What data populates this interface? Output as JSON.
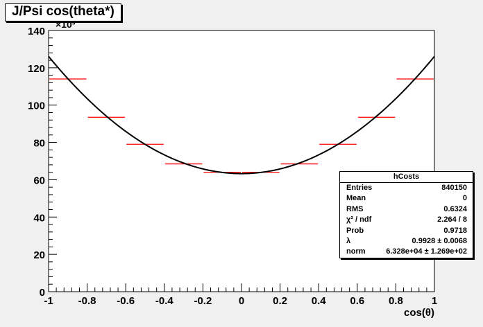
{
  "chart_data": {
    "type": "bar",
    "title": "J/Psi cos(theta*)",
    "xlabel": "cos(θ)",
    "ylabel": "",
    "y_exponent_label": "×10³",
    "xlim": [
      -1,
      1
    ],
    "ylim": [
      0,
      140
    ],
    "x_ticks": [
      "-1",
      "-0.8",
      "-0.6",
      "-0.4",
      "-0.2",
      "0",
      "0.2",
      "0.4",
      "0.6",
      "0.8",
      "1"
    ],
    "y_ticks": [
      "0",
      "20",
      "40",
      "60",
      "80",
      "100",
      "120",
      "140"
    ],
    "bin_edges": [
      -1.0,
      -0.8,
      -0.6,
      -0.4,
      -0.2,
      0.0,
      0.2,
      0.4,
      0.6,
      0.8,
      1.0
    ],
    "series": [
      {
        "values": [
          114.0,
          93.5,
          79.0,
          68.5,
          64.0,
          64.0,
          68.5,
          79.0,
          93.5,
          114.0
        ],
        "color": "#ff0000"
      }
    ],
    "fit": {
      "function": "norm*(1+lambda*x^2)",
      "lambda": 0.9928,
      "norm": 63.28,
      "color": "#000000"
    },
    "stats": {
      "title": "hCosts",
      "rows": [
        {
          "label": "Entries",
          "value": "840150"
        },
        {
          "label": "Mean",
          "value": "0"
        },
        {
          "label": "RMS",
          "value": "0.6324"
        },
        {
          "label": "χ² / ndf",
          "value": "2.264 / 8"
        },
        {
          "label": "Prob",
          "value": "0.9718"
        },
        {
          "label": "λ",
          "value": "0.9928 ± 0.0068"
        },
        {
          "label": "norm",
          "value": "6.328e+04 ± 1.269e+02"
        }
      ]
    },
    "grid": false,
    "background": "#ffffff",
    "canvas_background": "#f0f0f0"
  }
}
